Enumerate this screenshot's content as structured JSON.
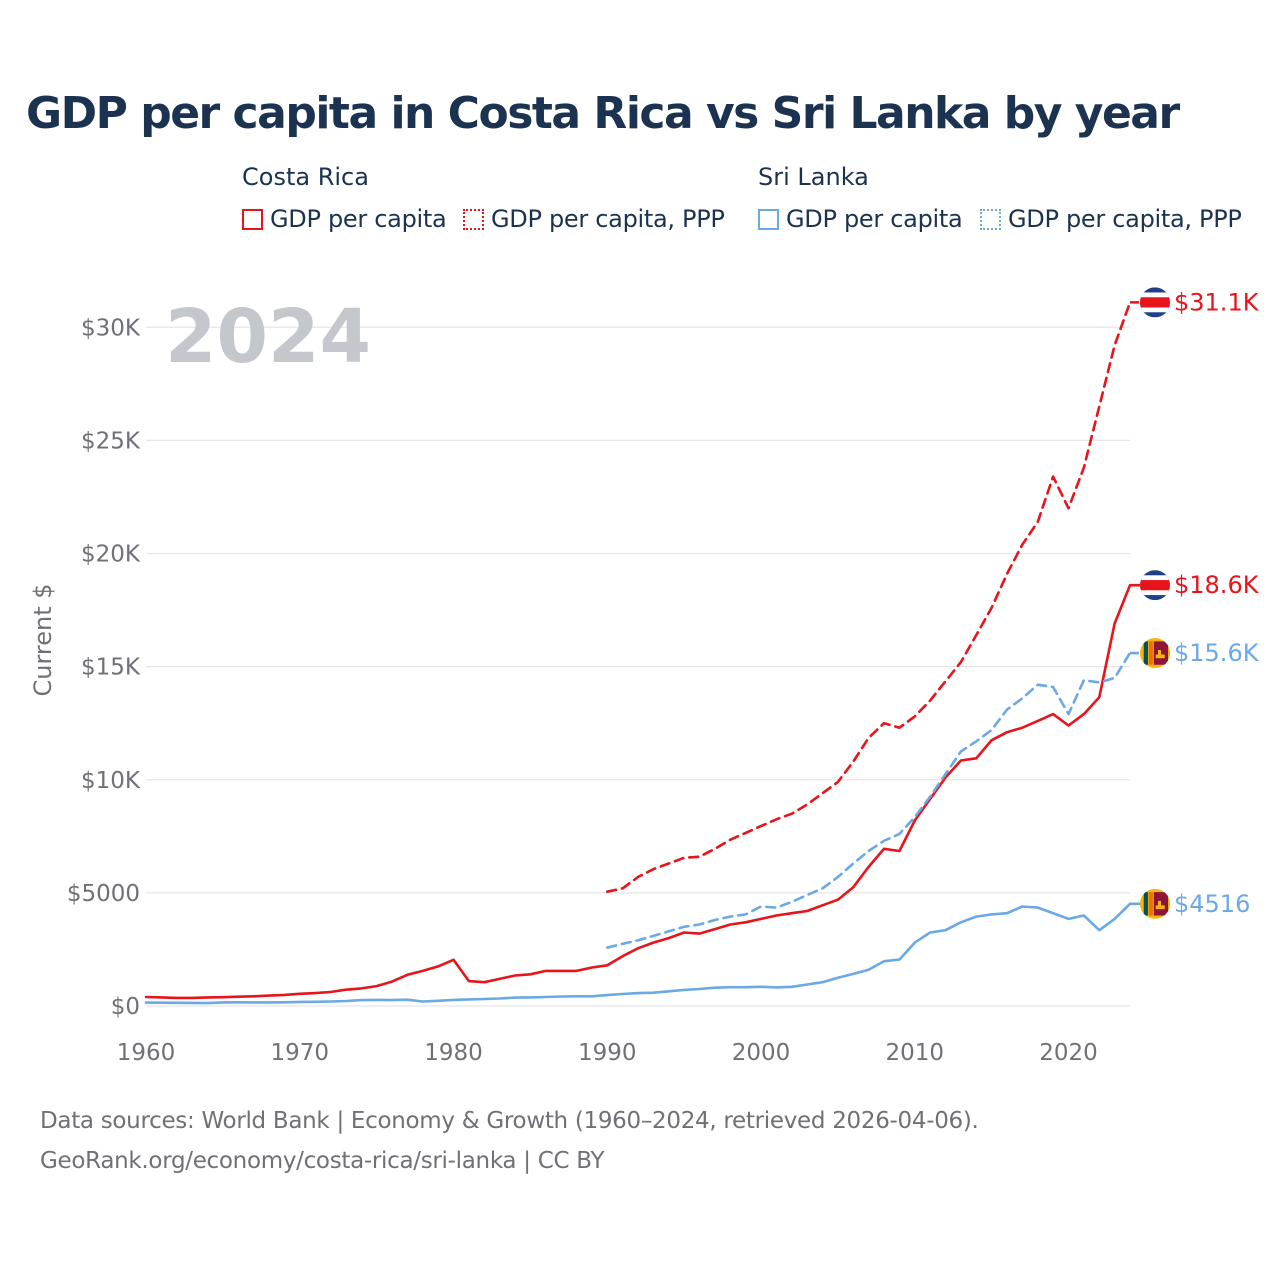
{
  "title": "GDP per capita in Costa Rica vs Sri Lanka by year",
  "legend": {
    "groups": [
      {
        "name": "Costa Rica",
        "color": "#e8141b",
        "items": [
          {
            "label": "GDP per capita",
            "style": "solid"
          },
          {
            "label": "GDP per capita, PPP",
            "style": "dotted"
          }
        ]
      },
      {
        "name": "Sri Lanka",
        "color": "#6aa9e6",
        "items": [
          {
            "label": "GDP per capita",
            "style": "solid"
          },
          {
            "label": "GDP per capita, PPP",
            "style": "dotted"
          }
        ]
      }
    ]
  },
  "year_label": "2024",
  "footer": {
    "line1": "Data sources: World Bank | Economy & Growth (1960–2024, retrieved 2026-04-06).",
    "line2": "GeoRank.org/economy/costa-rica/sri-lanka | CC BY"
  },
  "chart_data": {
    "type": "line",
    "title": "GDP per capita in Costa Rica vs Sri Lanka by year",
    "xlabel": "",
    "ylabel": "Current $",
    "xlim": [
      1960,
      2024
    ],
    "ylim": [
      0,
      32000
    ],
    "grid": true,
    "x_ticks": [
      1960,
      1970,
      1980,
      1990,
      2000,
      2010,
      2020
    ],
    "x_tick_labels": [
      "1960",
      "1970",
      "1980",
      "1990",
      "2000",
      "2010",
      "2020"
    ],
    "y_ticks": [
      0,
      5000,
      10000,
      15000,
      20000,
      25000,
      30000
    ],
    "y_tick_labels": [
      "$0",
      "$5000",
      "$10K",
      "$15K",
      "$20K",
      "$25K",
      "$30K"
    ],
    "series": [
      {
        "name": "Costa Rica GDP per capita",
        "country": "Costa Rica",
        "color": "#e8141b",
        "dash": "solid",
        "end_label": "$18.6K",
        "x": [
          1960,
          1961,
          1962,
          1963,
          1964,
          1965,
          1966,
          1967,
          1968,
          1969,
          1970,
          1971,
          1972,
          1973,
          1974,
          1975,
          1976,
          1977,
          1978,
          1979,
          1980,
          1981,
          1982,
          1983,
          1984,
          1985,
          1986,
          1987,
          1988,
          1989,
          1990,
          1991,
          1992,
          1993,
          1994,
          1995,
          1996,
          1997,
          1998,
          1999,
          2000,
          2001,
          2002,
          2003,
          2004,
          2005,
          2006,
          2007,
          2008,
          2009,
          2010,
          2011,
          2012,
          2013,
          2014,
          2015,
          2016,
          2017,
          2018,
          2019,
          2020,
          2021,
          2022,
          2023,
          2024
        ],
        "values": [
          400,
          380,
          360,
          360,
          380,
          390,
          410,
          430,
          460,
          490,
          540,
          570,
          620,
          720,
          780,
          880,
          1080,
          1380,
          1550,
          1750,
          2040,
          1100,
          1050,
          1200,
          1350,
          1400,
          1550,
          1550,
          1550,
          1700,
          1800,
          2200,
          2550,
          2800,
          3000,
          3250,
          3200,
          3400,
          3600,
          3700,
          3850,
          4000,
          4100,
          4200,
          4450,
          4700,
          5250,
          6150,
          6950,
          6850,
          8200,
          9150,
          10100,
          10850,
          10950,
          11750,
          12100,
          12300,
          12600,
          12900,
          12400,
          12900,
          13650,
          16900,
          18600
        ]
      },
      {
        "name": "Costa Rica GDP per capita, PPP",
        "country": "Costa Rica",
        "color": "#e8141b",
        "dash": "dashed",
        "end_label": "$31.1K",
        "x": [
          1990,
          1991,
          1992,
          1993,
          1994,
          1995,
          1996,
          1997,
          1998,
          1999,
          2000,
          2001,
          2002,
          2003,
          2004,
          2005,
          2006,
          2007,
          2008,
          2009,
          2010,
          2011,
          2012,
          2013,
          2014,
          2015,
          2016,
          2017,
          2018,
          2019,
          2020,
          2021,
          2022,
          2023,
          2024
        ],
        "values": [
          5050,
          5200,
          5700,
          6050,
          6300,
          6550,
          6600,
          6950,
          7350,
          7650,
          7950,
          8250,
          8500,
          8900,
          9400,
          9900,
          10800,
          11850,
          12500,
          12300,
          12800,
          13500,
          14350,
          15200,
          16400,
          17600,
          19100,
          20400,
          21400,
          23400,
          22000,
          23800,
          26500,
          29200,
          31100
        ]
      },
      {
        "name": "Sri Lanka GDP per capita",
        "country": "Sri Lanka",
        "color": "#6aa9e6",
        "dash": "solid",
        "end_label": "$4516",
        "x": [
          1960,
          1961,
          1962,
          1963,
          1964,
          1965,
          1966,
          1967,
          1968,
          1969,
          1970,
          1971,
          1972,
          1973,
          1974,
          1975,
          1976,
          1977,
          1978,
          1979,
          1980,
          1981,
          1982,
          1983,
          1984,
          1985,
          1986,
          1987,
          1988,
          1989,
          1990,
          1991,
          1992,
          1993,
          1994,
          1995,
          1996,
          1997,
          1998,
          1999,
          2000,
          2001,
          2002,
          2003,
          2004,
          2005,
          2006,
          2007,
          2008,
          2009,
          2010,
          2011,
          2012,
          2013,
          2014,
          2015,
          2016,
          2017,
          2018,
          2019,
          2020,
          2021,
          2022,
          2023,
          2024
        ],
        "values": [
          150,
          145,
          140,
          135,
          130,
          160,
          165,
          160,
          160,
          165,
          180,
          185,
          200,
          220,
          260,
          270,
          260,
          280,
          200,
          230,
          270,
          290,
          310,
          330,
          370,
          380,
          400,
          420,
          430,
          430,
          480,
          530,
          570,
          590,
          650,
          710,
          750,
          810,
          830,
          830,
          850,
          820,
          850,
          950,
          1050,
          1250,
          1420,
          1600,
          1980,
          2050,
          2800,
          3250,
          3350,
          3700,
          3950,
          4050,
          4100,
          4400,
          4350,
          4100,
          3850,
          4000,
          3350,
          3850,
          4516
        ]
      },
      {
        "name": "Sri Lanka GDP per capita, PPP",
        "country": "Sri Lanka",
        "color": "#6aa9e6",
        "dash": "dashed",
        "end_label": "$15.6K",
        "x": [
          1990,
          1991,
          1992,
          1993,
          1994,
          1995,
          1996,
          1997,
          1998,
          1999,
          2000,
          2001,
          2002,
          2003,
          2004,
          2005,
          2006,
          2007,
          2008,
          2009,
          2010,
          2011,
          2012,
          2013,
          2014,
          2015,
          2016,
          2017,
          2018,
          2019,
          2020,
          2021,
          2022,
          2023,
          2024
        ],
        "values": [
          2580,
          2750,
          2900,
          3100,
          3300,
          3500,
          3600,
          3800,
          3950,
          4050,
          4400,
          4350,
          4600,
          4900,
          5200,
          5700,
          6300,
          6850,
          7300,
          7600,
          8350,
          9250,
          10250,
          11250,
          11700,
          12200,
          13100,
          13600,
          14200,
          14100,
          12900,
          14400,
          14300,
          14500,
          15600
        ]
      }
    ]
  }
}
